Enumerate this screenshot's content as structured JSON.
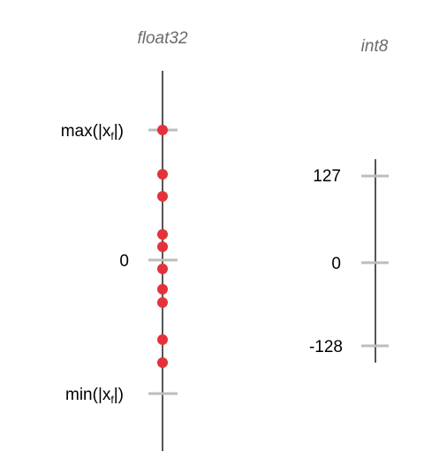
{
  "float_axis": {
    "title": "float32",
    "ticks": [
      {
        "id": "max",
        "label": "max(|x",
        "label_sub": "f",
        "label_end": "|)"
      },
      {
        "id": "zero",
        "label": "0"
      },
      {
        "id": "min",
        "label": "min(|x",
        "label_sub": "f",
        "label_end": "|)"
      }
    ],
    "points_count": 10
  },
  "int_axis": {
    "title": "int8",
    "ticks": [
      {
        "id": "max",
        "label": "127"
      },
      {
        "id": "zero",
        "label": "0"
      },
      {
        "id": "min",
        "label": "-128"
      }
    ]
  },
  "colors": {
    "axis_line": "#555555",
    "tick": "#bdbdbd",
    "point": "#e53238",
    "title": "#6b6b6b",
    "label": "#000000"
  }
}
